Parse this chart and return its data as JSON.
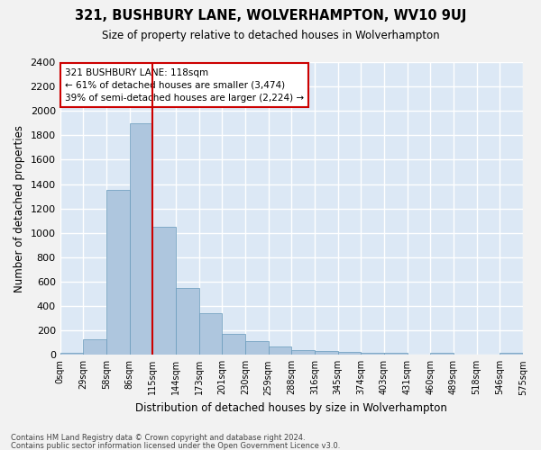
{
  "title": "321, BUSHBURY LANE, WOLVERHAMPTON, WV10 9UJ",
  "subtitle": "Size of property relative to detached houses in Wolverhampton",
  "xlabel": "Distribution of detached houses by size in Wolverhampton",
  "ylabel": "Number of detached properties",
  "footer_lines": [
    "Contains HM Land Registry data © Crown copyright and database right 2024.",
    "Contains public sector information licensed under the Open Government Licence v3.0."
  ],
  "bin_labels": [
    "0sqm",
    "29sqm",
    "58sqm",
    "86sqm",
    "115sqm",
    "144sqm",
    "173sqm",
    "201sqm",
    "230sqm",
    "259sqm",
    "288sqm",
    "316sqm",
    "345sqm",
    "374sqm",
    "403sqm",
    "431sqm",
    "460sqm",
    "489sqm",
    "518sqm",
    "546sqm",
    "575sqm"
  ],
  "bar_values": [
    20,
    130,
    1350,
    1900,
    1050,
    550,
    340,
    175,
    115,
    65,
    40,
    35,
    28,
    20,
    15,
    0,
    20,
    0,
    0,
    20
  ],
  "bar_color": "#aec6de",
  "bar_edge_color": "#6699bb",
  "background_color": "#dce8f5",
  "grid_color": "#ffffff",
  "red_line_color": "#cc0000",
  "annotation_text": "321 BUSHBURY LANE: 118sqm\n← 61% of detached houses are smaller (3,474)\n39% of semi-detached houses are larger (2,224) →",
  "annotation_box_color": "#ffffff",
  "annotation_box_edge_color": "#cc0000",
  "ylim": [
    0,
    2400
  ],
  "yticks": [
    0,
    200,
    400,
    600,
    800,
    1000,
    1200,
    1400,
    1600,
    1800,
    2000,
    2200,
    2400
  ]
}
